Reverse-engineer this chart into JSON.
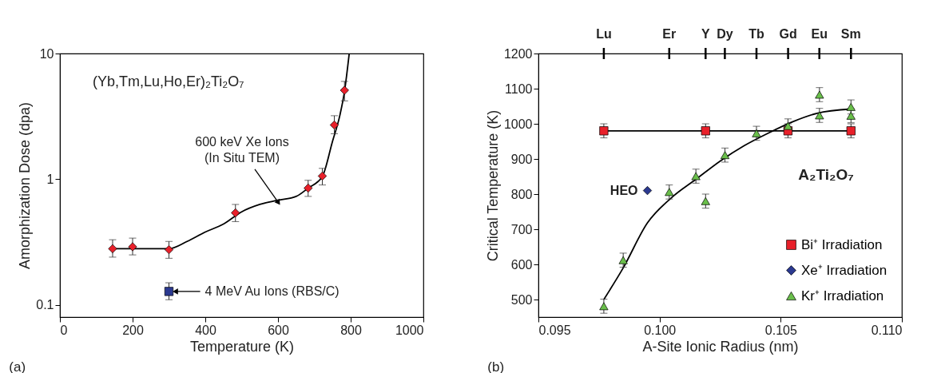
{
  "chart_data": [
    {
      "type": "scatter",
      "xlabel": "Temperature (K)",
      "ylabel": "Amorphization Dose (dpa)",
      "xlim": [
        0,
        1000
      ],
      "xticks": [
        0,
        200,
        400,
        600,
        800,
        1000
      ],
      "ylim": [
        0.08,
        10
      ],
      "yticks": [
        0.1,
        1,
        10
      ],
      "log": "y",
      "grid": false,
      "legend": false,
      "annotations": [
        "(Yb,Tm,Lu,Ho,Er)₂Ti₂O₇",
        "(a)",
        {
          "text": "600 keV Xe Ions\n(In Situ TEM)",
          "x": 600,
          "y": 0.66
        },
        {
          "text": "4 MeV Au Ions (RBS/C)",
          "x": 320,
          "y": 0.128
        }
      ],
      "series": [
        {
          "type": "line",
          "color": "#000000",
          "marker": "none",
          "x": [
            145,
            300,
            350,
            400,
            450,
            500,
            550,
            600,
            650,
            683,
            722,
            750,
            770,
            783,
            796
          ],
          "values": [
            0.28,
            0.28,
            0.32,
            0.38,
            0.44,
            0.55,
            0.63,
            0.68,
            0.73,
            0.85,
            1.05,
            2.0,
            3.2,
            5.0,
            10
          ]
        },
        {
          "type": "scatter",
          "color": "#e8202a",
          "marker": "diamond",
          "x": [
            145,
            200,
            300,
            483,
            683,
            722,
            755,
            783
          ],
          "values": [
            0.28,
            0.29,
            0.275,
            0.54,
            0.85,
            1.06,
            2.7,
            5.1
          ],
          "errors": [
            [
              0.24,
              0.33
            ],
            [
              0.25,
              0.34
            ],
            [
              0.235,
              0.32
            ],
            [
              0.46,
              0.63
            ],
            [
              0.73,
              0.98
            ],
            [
              0.9,
              1.22
            ],
            [
              2.3,
              3.2
            ],
            [
              4.2,
              6.0
            ]
          ]
        },
        {
          "type": "scatter",
          "color": "#2b3990",
          "marker": "square",
          "x": [
            300
          ],
          "values": [
            0.128
          ],
          "errors": [
            [
              0.11,
              0.15
            ]
          ]
        }
      ]
    },
    {
      "type": "scatter",
      "xlabel": "A-Site Ionic Radius (nm)",
      "ylabel": "Critical Temperature (K)",
      "xlim": [
        0.095,
        0.11
      ],
      "xticks": [
        {
          "value": 0.095,
          "label": "0.095"
        },
        {
          "value": 0.1,
          "label": "0.100"
        },
        {
          "value": 0.105,
          "label": "0.105"
        },
        {
          "value": 0.11,
          "label": "0.110"
        }
      ],
      "ylim": [
        450,
        1200
      ],
      "yticks": [
        500,
        600,
        700,
        800,
        900,
        1000,
        1100,
        1200
      ],
      "grid": false,
      "legend": "bottom right",
      "annotations": [
        "A₂Ti₂O₇",
        "(b)",
        {
          "text": "HEO",
          "x": 0.0995,
          "y": 810
        },
        "Lu",
        "Er",
        "Y",
        "Dy",
        "Tb",
        "Gd",
        "Eu",
        "Sm"
      ],
      "series": [
        {
          "type": "line",
          "color": "#000000",
          "marker": "none",
          "x": [
            0.0977,
            0.1079
          ],
          "values": [
            980,
            980
          ]
        },
        {
          "type": "line",
          "color": "#000000",
          "marker": "none",
          "x": [
            0.0977,
            0.0985,
            0.0995,
            0.1005,
            0.1015,
            0.1025,
            0.1035,
            0.1045,
            0.1055,
            0.1065,
            0.1079
          ],
          "values": [
            500,
            590,
            718,
            790,
            842,
            894,
            938,
            974,
            1006,
            1030,
            1042
          ]
        },
        {
          "type": "scatter",
          "name": "Bi⁺ Irradiation",
          "color": "#e8202a",
          "marker": "square",
          "x": [
            0.0977,
            0.1019,
            0.1053,
            0.1079
          ],
          "values": [
            980,
            980,
            980,
            980
          ],
          "errors": [
            20,
            20,
            20,
            20
          ]
        },
        {
          "type": "scatter",
          "name": "Xe⁺ Irradiation",
          "color": "#2b3990",
          "marker": "diamond",
          "x": [
            0.0995
          ],
          "values": [
            810
          ]
        },
        {
          "type": "scatter",
          "name": "Kr⁺ Irradiation",
          "color": "#6abf4b",
          "marker": "triangle",
          "x": [
            0.0977,
            0.0985,
            0.1004,
            0.1015,
            0.1019,
            0.1027,
            0.104,
            0.1053,
            0.1066,
            0.1066,
            0.1079,
            0.1079
          ],
          "values": [
            481,
            612,
            806,
            851,
            780,
            911,
            973,
            994,
            1083,
            1024,
            1048,
            1023
          ],
          "errors": [
            20,
            20,
            20,
            20,
            20,
            20,
            20,
            20,
            20,
            20,
            20,
            20
          ]
        }
      ]
    }
  ]
}
